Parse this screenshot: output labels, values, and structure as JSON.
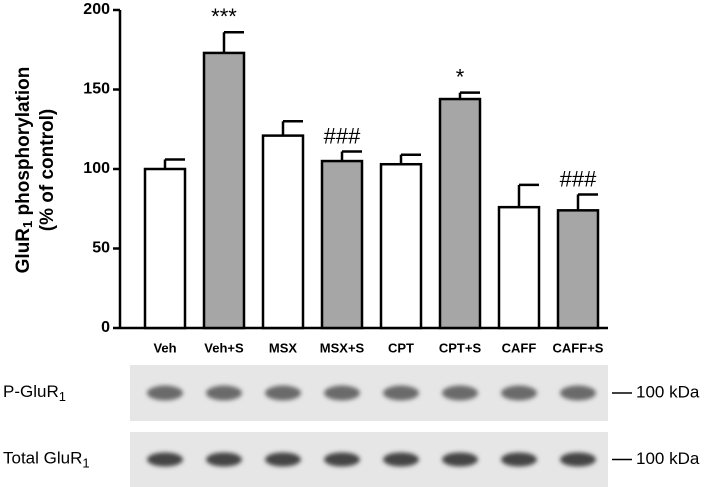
{
  "chart_data": {
    "type": "bar",
    "categories": [
      "Veh",
      "Veh+S",
      "MSX",
      "MSX+S",
      "CPT",
      "CPT+S",
      "CAFF",
      "CAFF+S"
    ],
    "values": [
      100,
      173,
      121,
      105,
      103,
      144,
      76,
      74
    ],
    "errors": [
      6,
      13,
      9,
      6,
      6,
      4,
      14,
      10
    ],
    "colors": [
      "#ffffff",
      "#a6a6a6",
      "#ffffff",
      "#a6a6a6",
      "#ffffff",
      "#a6a6a6",
      "#ffffff",
      "#a6a6a6"
    ],
    "annotations": [
      null,
      "***",
      null,
      "###",
      null,
      "*",
      null,
      "###"
    ],
    "y_label": {
      "main": "GluR",
      "sub": "1",
      "rest": " phosphorylation",
      "line2": "(% of control)"
    },
    "ylim": [
      0,
      200
    ],
    "yticks": [
      0,
      50,
      100,
      150,
      200
    ]
  },
  "blots": [
    {
      "label": "P-GluR",
      "sub": "1",
      "marker": "100 kDa"
    },
    {
      "label": "Total GluR",
      "sub": "1",
      "marker": "100 kDa"
    }
  ]
}
